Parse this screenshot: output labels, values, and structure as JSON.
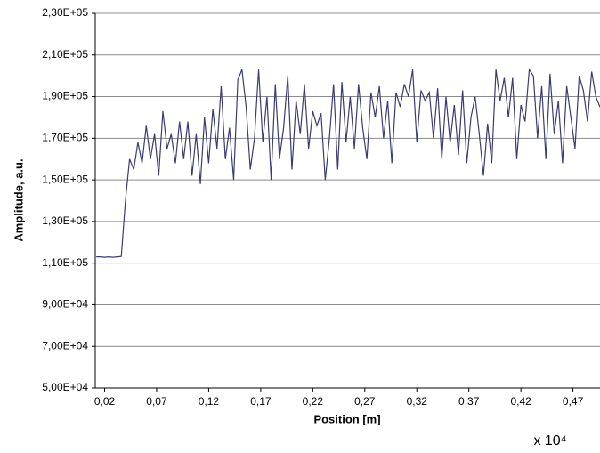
{
  "chart_data": {
    "type": "line",
    "x_label": "Position [m]",
    "y_label": "Amplitude, a.u.",
    "annotation": "x 10⁴",
    "xlim": [
      0.011,
      0.496
    ],
    "ylim": [
      50000,
      230000
    ],
    "xticks": [
      {
        "value": 0.02,
        "label": "0,02"
      },
      {
        "value": 0.07,
        "label": "0,07"
      },
      {
        "value": 0.12,
        "label": "0,12"
      },
      {
        "value": 0.17,
        "label": "0,17"
      },
      {
        "value": 0.22,
        "label": "0,22"
      },
      {
        "value": 0.27,
        "label": "0,27"
      },
      {
        "value": 0.32,
        "label": "0,32"
      },
      {
        "value": 0.37,
        "label": "0,37"
      },
      {
        "value": 0.42,
        "label": "0,42"
      },
      {
        "value": 0.47,
        "label": "0,47"
      }
    ],
    "yticks": [
      {
        "value": 50000,
        "label": "5,00E+04"
      },
      {
        "value": 70000,
        "label": "7,00E+04"
      },
      {
        "value": 90000,
        "label": "9,00E+04"
      },
      {
        "value": 110000,
        "label": "1,10E+05"
      },
      {
        "value": 130000,
        "label": "1,30E+05"
      },
      {
        "value": 150000,
        "label": "1,50E+05"
      },
      {
        "value": 170000,
        "label": "1,70E+05"
      },
      {
        "value": 190000,
        "label": "1,90E+05"
      },
      {
        "value": 210000,
        "label": "2,10E+05"
      },
      {
        "value": 230000,
        "label": "2,30E+05"
      }
    ],
    "grid": true,
    "x": [
      0.012,
      0.016,
      0.02,
      0.024,
      0.028,
      0.032,
      0.036,
      0.04,
      0.044,
      0.048,
      0.052,
      0.056,
      0.06,
      0.064,
      0.068,
      0.072,
      0.076,
      0.08,
      0.084,
      0.088,
      0.092,
      0.096,
      0.1,
      0.104,
      0.108,
      0.112,
      0.116,
      0.12,
      0.124,
      0.128,
      0.132,
      0.136,
      0.14,
      0.144,
      0.148,
      0.152,
      0.156,
      0.16,
      0.164,
      0.168,
      0.172,
      0.176,
      0.18,
      0.184,
      0.188,
      0.192,
      0.196,
      0.2,
      0.204,
      0.208,
      0.212,
      0.216,
      0.22,
      0.224,
      0.228,
      0.232,
      0.236,
      0.24,
      0.244,
      0.248,
      0.252,
      0.256,
      0.26,
      0.264,
      0.268,
      0.272,
      0.276,
      0.28,
      0.284,
      0.288,
      0.292,
      0.296,
      0.3,
      0.304,
      0.308,
      0.312,
      0.316,
      0.32,
      0.324,
      0.328,
      0.332,
      0.336,
      0.34,
      0.344,
      0.348,
      0.352,
      0.356,
      0.36,
      0.364,
      0.368,
      0.372,
      0.376,
      0.38,
      0.384,
      0.388,
      0.392,
      0.396,
      0.4,
      0.404,
      0.408,
      0.412,
      0.416,
      0.42,
      0.424,
      0.428,
      0.432,
      0.436,
      0.44,
      0.444,
      0.448,
      0.452,
      0.456,
      0.46,
      0.464,
      0.468,
      0.472,
      0.476,
      0.48,
      0.484,
      0.488,
      0.492,
      0.496
    ],
    "series": [
      {
        "name": "Amplitude",
        "color": "#3b3b73",
        "values": [
          113000,
          113000,
          112800,
          113000,
          112800,
          113000,
          113200,
          140000,
          160000,
          155000,
          168000,
          158000,
          176000,
          160000,
          172000,
          152000,
          183000,
          165000,
          172000,
          158000,
          178000,
          160000,
          178000,
          152000,
          172000,
          148000,
          180000,
          158000,
          184000,
          165000,
          195000,
          160000,
          175000,
          150000,
          198000,
          203000,
          185000,
          155000,
          170000,
          203000,
          168000,
          190000,
          150000,
          196000,
          160000,
          175000,
          200000,
          155000,
          188000,
          172000,
          196000,
          165000,
          183000,
          176000,
          182000,
          150000,
          170000,
          196000,
          155000,
          197000,
          168000,
          190000,
          165000,
          196000,
          175000,
          160000,
          192000,
          180000,
          195000,
          170000,
          188000,
          158000,
          192000,
          185000,
          196000,
          190000,
          203000,
          168000,
          193000,
          188000,
          192000,
          170000,
          194000,
          160000,
          190000,
          168000,
          186000,
          162000,
          193000,
          158000,
          180000,
          190000,
          172000,
          152000,
          177000,
          158000,
          203000,
          188000,
          199000,
          180000,
          199000,
          160000,
          186000,
          178000,
          203000,
          200000,
          170000,
          195000,
          160000,
          201000,
          172000,
          188000,
          158000,
          195000,
          180000,
          165000,
          200000,
          193000,
          178000,
          202000,
          190000,
          185000
        ]
      }
    ]
  }
}
